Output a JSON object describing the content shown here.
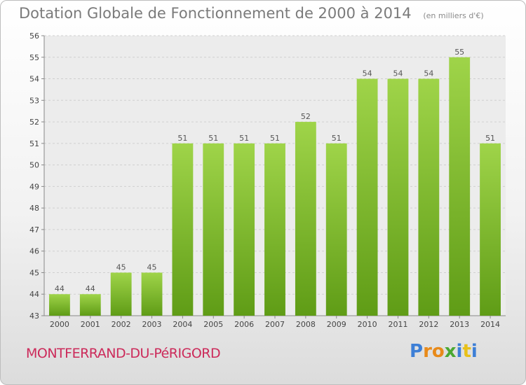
{
  "chart_data": {
    "type": "bar",
    "title": "Dotation Globale de Fonctionnement de 2000 à 2014",
    "unit": "(en milliers d'€)",
    "categories": [
      "2000",
      "2001",
      "2002",
      "2003",
      "2004",
      "2005",
      "2006",
      "2007",
      "2008",
      "2009",
      "2010",
      "2011",
      "2012",
      "2013",
      "2014"
    ],
    "values": [
      44,
      44,
      45,
      45,
      51,
      51,
      51,
      51,
      52,
      51,
      54,
      54,
      54,
      55,
      51
    ],
    "ylim": [
      43,
      56
    ],
    "yticks": [
      43,
      44,
      45,
      46,
      47,
      48,
      49,
      50,
      51,
      52,
      53,
      54,
      55,
      56
    ],
    "grid": true,
    "bar_color": "#7dbf2e"
  },
  "footer": {
    "commune": "MONTFERRAND-DU-PéRIGORD",
    "logo_letters": [
      "P",
      "r",
      "o",
      "x",
      "i",
      "t",
      "i"
    ],
    "logo_colors": [
      "#3d7fd6",
      "#e88a1a",
      "#e88a1a",
      "#4aa832",
      "#3d7fd6",
      "#e8c11a",
      "#3d7fd6"
    ]
  }
}
